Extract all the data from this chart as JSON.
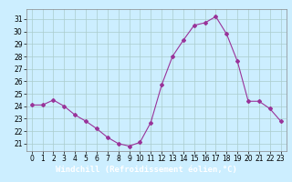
{
  "x": [
    0,
    1,
    2,
    3,
    4,
    5,
    6,
    7,
    8,
    9,
    10,
    11,
    12,
    13,
    14,
    15,
    16,
    17,
    18,
    19,
    20,
    21,
    22,
    23
  ],
  "y": [
    24.1,
    24.1,
    24.5,
    24.0,
    23.3,
    22.8,
    22.2,
    21.5,
    21.0,
    20.8,
    21.1,
    22.7,
    25.7,
    28.0,
    29.3,
    30.5,
    30.7,
    31.2,
    29.8,
    27.6,
    24.4,
    24.4,
    23.8,
    22.8
  ],
  "line_color": "#993399",
  "marker": "D",
  "marker_size": 2,
  "bg_color": "#cceeff",
  "grid_color": "#aacccc",
  "xlabel": "Windchill (Refroidissement éolien,°C)",
  "xlabel_color": "#ffffff",
  "xlabel_bg": "#993399",
  "ylabel_ticks": [
    21,
    22,
    23,
    24,
    25,
    26,
    27,
    28,
    29,
    30,
    31
  ],
  "xlim": [
    -0.5,
    23.5
  ],
  "ylim": [
    20.4,
    31.8
  ],
  "xticks": [
    0,
    1,
    2,
    3,
    4,
    5,
    6,
    7,
    8,
    9,
    10,
    11,
    12,
    13,
    14,
    15,
    16,
    17,
    18,
    19,
    20,
    21,
    22,
    23
  ],
  "tick_fontsize": 5.5,
  "xlabel_fontsize": 6.5
}
